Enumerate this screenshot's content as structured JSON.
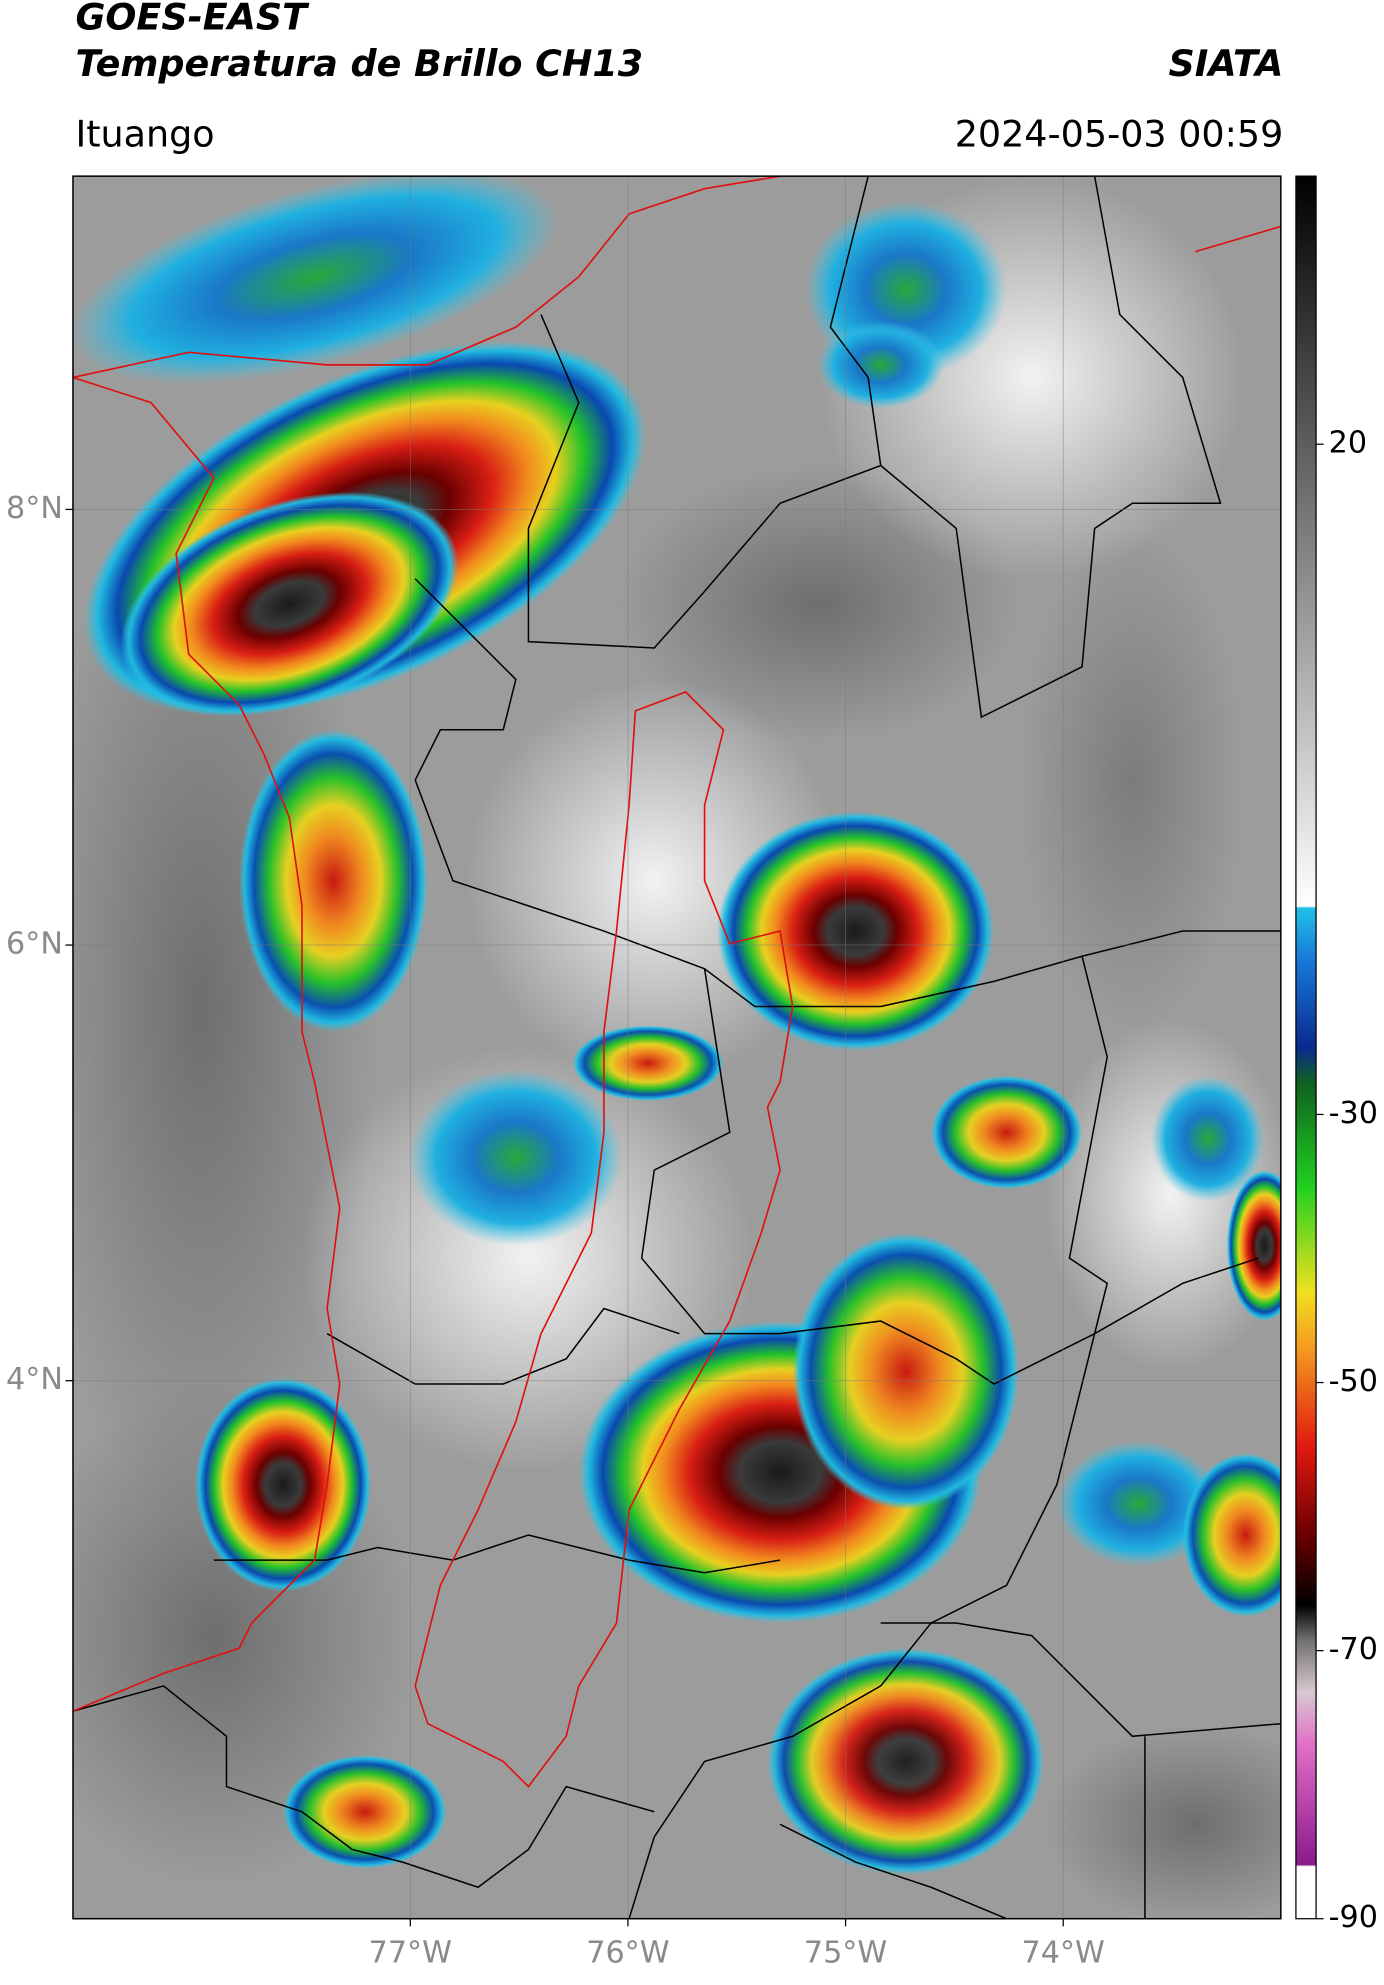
{
  "header": {
    "title": "GOES-EAST",
    "subtitle": "Temperatura de Brillo CH13",
    "source": "SIATA",
    "location": "Ituango",
    "datetime": "2024-05-03 00:59"
  },
  "map": {
    "lon_range": [
      -78.55,
      -73.0
    ],
    "lat_range": [
      1.53,
      9.53
    ],
    "lat_ticks": [
      {
        "value": 8,
        "label": "8°N"
      },
      {
        "value": 6,
        "label": "6°N"
      },
      {
        "value": 4,
        "label": "4°N"
      }
    ],
    "lon_ticks": [
      {
        "value": -77,
        "label": "77°W"
      },
      {
        "value": -76,
        "label": "76°W"
      },
      {
        "value": -75,
        "label": "75°W"
      },
      {
        "value": -74,
        "label": "74°W"
      }
    ]
  },
  "colorbar": {
    "range": [
      -90,
      40
    ],
    "ticks": [
      20,
      -30,
      -50,
      -70,
      -90
    ]
  }
}
